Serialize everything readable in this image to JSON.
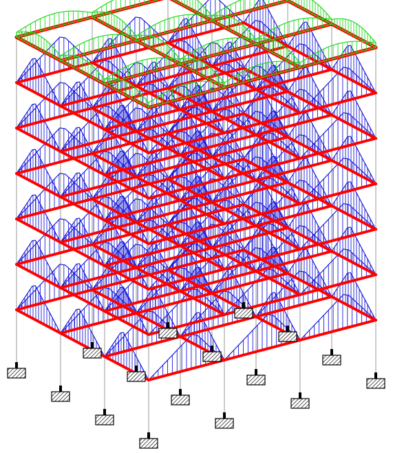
{
  "model": {
    "stories": 7,
    "bays_x": 3,
    "bays_y": 3,
    "supports": 16
  },
  "colors": {
    "background": "#ffffff",
    "beam": "#ff0000",
    "column": "#9a9a9a",
    "floor_diagram": "#1a1ad6",
    "roof_diagram": "#22d822",
    "support_fill": "#ffffff",
    "support_hatch": "#000000"
  }
}
